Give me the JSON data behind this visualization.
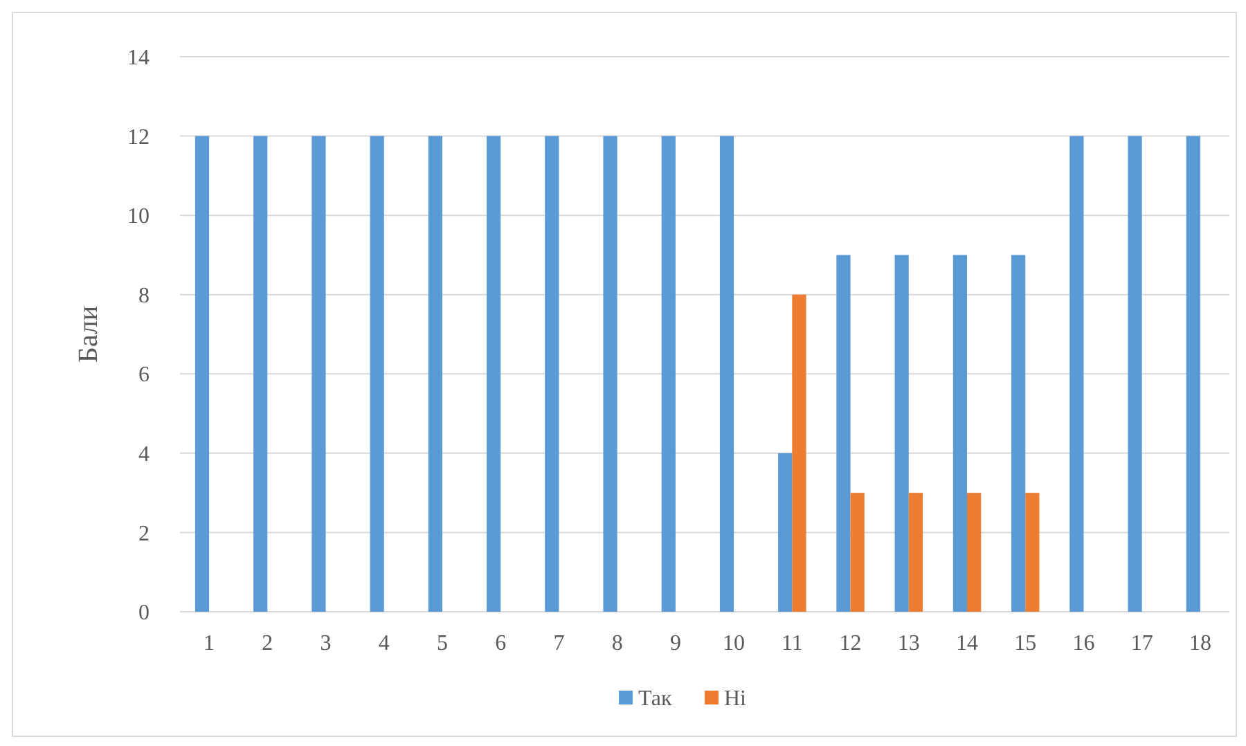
{
  "chart_data": {
    "type": "bar",
    "ylabel": "Бали",
    "categories": [
      "1",
      "2",
      "3",
      "4",
      "5",
      "6",
      "7",
      "8",
      "9",
      "10",
      "11",
      "12",
      "13",
      "14",
      "15",
      "16",
      "17",
      "18"
    ],
    "series": [
      {
        "name": "Так",
        "color": "#5b9bd5",
        "values": [
          12,
          12,
          12,
          12,
          12,
          12,
          12,
          12,
          12,
          12,
          4,
          9,
          9,
          9,
          9,
          12,
          12,
          12
        ]
      },
      {
        "name": "Ні",
        "color": "#ed7d31",
        "values": [
          0,
          0,
          0,
          0,
          0,
          0,
          0,
          0,
          0,
          0,
          8,
          3,
          3,
          3,
          3,
          0,
          0,
          0
        ]
      }
    ],
    "ylim": [
      0,
      14
    ],
    "yticks": [
      0,
      2,
      4,
      6,
      8,
      10,
      12,
      14
    ],
    "grid": "y",
    "legend": "bottom"
  }
}
